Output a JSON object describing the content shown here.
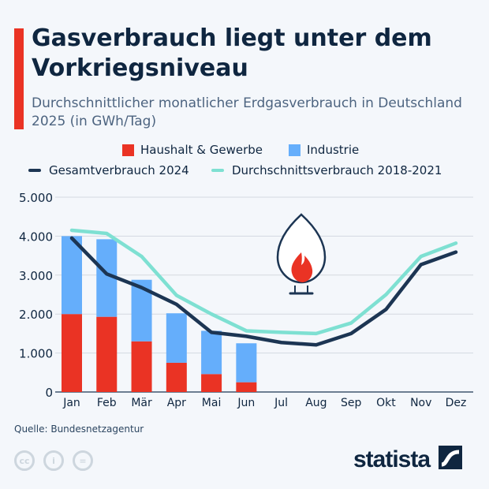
{
  "header": {
    "title": "Gasverbrauch liegt unter dem Vorkriegsniveau",
    "subtitle": "Durchschnittlicher monatlicher Erdgasverbrauch in Deutschland 2025 (in GWh/Tag)"
  },
  "footer": {
    "source": "Quelle: Bundesnetzagentur",
    "brand": "statista",
    "license_icons": [
      "cc-icon",
      "attribution-icon",
      "no-derivatives-icon"
    ]
  },
  "colors": {
    "haushalt": "#ea3324",
    "industrie": "#65aefb",
    "gesamt2024": "#1c3553",
    "durchschnitt": "#7ee0d2",
    "accent": "#ea3324"
  },
  "chart_data": {
    "type": "bar",
    "stacked": true,
    "title": "Gasverbrauch liegt unter dem Vorkriegsniveau",
    "subtitle": "Durchschnittlicher monatlicher Erdgasverbrauch in Deutschland 2025 (in GWh/Tag)",
    "categories": [
      "Jan",
      "Feb",
      "Mär",
      "Apr",
      "Mai",
      "Jun",
      "Jul",
      "Aug",
      "Sep",
      "Okt",
      "Nov",
      "Dez"
    ],
    "ylim": [
      0,
      5000
    ],
    "yticks": [
      "0",
      "1.000",
      "2.000",
      "3.000",
      "4.000",
      "5.000"
    ],
    "grid": true,
    "legend_position": "top",
    "series": [
      {
        "name": "Haushalt & Gewerbe",
        "type": "bar",
        "values": [
          2000,
          1930,
          1300,
          750,
          460,
          250,
          null,
          null,
          null,
          null,
          null,
          null
        ]
      },
      {
        "name": "Industrie",
        "type": "bar",
        "values": [
          2000,
          1990,
          1580,
          1270,
          1110,
          1000,
          null,
          null,
          null,
          null,
          null,
          null
        ]
      },
      {
        "name": "Gesamtverbrauch 2024",
        "type": "line",
        "values": [
          3950,
          3030,
          2680,
          2250,
          1530,
          1430,
          1270,
          1210,
          1500,
          2120,
          3270,
          3590
        ]
      },
      {
        "name": "Durchschnittsverbrauch 2018-2021",
        "type": "line",
        "values": [
          4150,
          4070,
          3480,
          2480,
          2000,
          1570,
          1530,
          1500,
          1770,
          2500,
          3480,
          3820
        ]
      }
    ]
  }
}
